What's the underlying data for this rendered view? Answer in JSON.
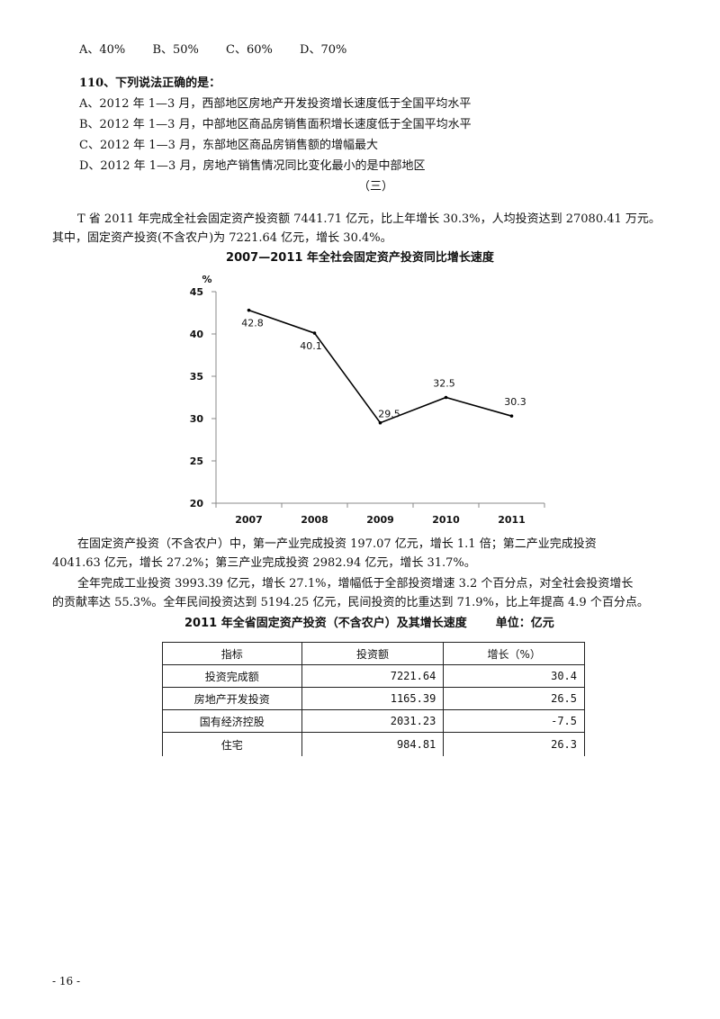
{
  "q109": {
    "options": [
      "A、40%",
      "B、50%",
      "C、60%",
      "D、70%"
    ]
  },
  "q110": {
    "stem": "110、下列说法正确的是：",
    "options": [
      "A、2012 年 1—3 月，西部地区房地产开发投资增长速度低于全国平均水平",
      "B、2012 年 1—3 月，中部地区商品房销售面积增长速度低于全国平均水平",
      "C、2012 年 1—3 月，东部地区商品房销售额的增幅最大",
      "D、2012 年 1—3 月，房地产销售情况同比变化最小的是中部地区"
    ]
  },
  "section_title": "（三）",
  "para1": [
    "T 省 2011 年完成全社会固定资产投资额 7441.71 亿元，比上年增长 30.3%，人均投资达到 27080.41 万元。",
    "其中，固定资产投资(不含农户)为 7221.64 亿元，增长 30.4%。"
  ],
  "chart_data": {
    "type": "line",
    "title": "2007—2011 年全社会固定资产投资同比增长速度",
    "ylabel": "%",
    "categories": [
      "2007",
      "2008",
      "2009",
      "2010",
      "2011"
    ],
    "values": [
      42.8,
      40.1,
      29.5,
      32.5,
      30.3
    ],
    "value_labels": [
      "42.8",
      "40.1",
      "29.5",
      "32.5",
      "30.3"
    ],
    "yticks": [
      "45",
      "40",
      "35",
      "30",
      "25",
      "20"
    ],
    "ylim": [
      20,
      45
    ],
    "grid": false,
    "line_color": "#000000"
  },
  "para2": [
    "在固定资产投资（不含农户）中，第一产业完成投资 197.07 亿元，增长 1.1 倍；第二产业完成投资",
    "4041.63 亿元，增长 27.2%；第三产业完成投资 2982.94 亿元，增长 31.7%。"
  ],
  "para3": [
    "全年完成工业投资 3993.39 亿元，增长 27.1%，增幅低于全部投资增速 3.2 个百分点，对全社会投资增长",
    "的贡献率达 55.3%。全年民间投资达到 5194.25 亿元，民间投资的比重达到 71.9%，比上年提高 4.9 个百分点。"
  ],
  "table": {
    "title": "2011 年全省固定资产投资（不含农户）及其增长速度",
    "unit": "单位：亿元",
    "headers": [
      "指标",
      "投资额",
      "增长（%）"
    ],
    "rows": [
      [
        "投资完成额",
        "7221.64",
        "30.4"
      ],
      [
        "房地产开发投资",
        "1165.39",
        "26.5"
      ],
      [
        "国有经济控股",
        "2031.23",
        "-7.5"
      ],
      [
        "住宅",
        "984.81",
        "26.3"
      ]
    ]
  },
  "page_number": "- 16 -"
}
